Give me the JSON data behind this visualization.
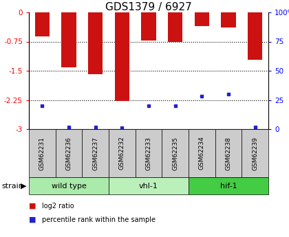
{
  "title": "GDS1379 / 6927",
  "samples": [
    "GSM62231",
    "GSM62236",
    "GSM62237",
    "GSM62232",
    "GSM62233",
    "GSM62235",
    "GSM62234",
    "GSM62238",
    "GSM62239"
  ],
  "log2_ratios": [
    -0.62,
    -1.42,
    -1.58,
    -2.28,
    -0.72,
    -0.75,
    -0.35,
    -0.38,
    -1.22
  ],
  "percentile_ranks": [
    20,
    2,
    2,
    1,
    20,
    20,
    28,
    30,
    2
  ],
  "groups": [
    {
      "label": "wild type",
      "indices": [
        0,
        1,
        2
      ],
      "color": "#aaeaaa"
    },
    {
      "label": "vhl-1",
      "indices": [
        3,
        4,
        5
      ],
      "color": "#bbf0bb"
    },
    {
      "label": "hif-1",
      "indices": [
        6,
        7,
        8
      ],
      "color": "#44cc44"
    }
  ],
  "ylim_left": [
    -3,
    0
  ],
  "ylim_right": [
    0,
    100
  ],
  "yticks_left": [
    0,
    -0.75,
    -1.5,
    -2.25,
    -3
  ],
  "yticks_right": [
    0,
    25,
    50,
    75,
    100
  ],
  "bar_color": "#cc1111",
  "dot_color": "#2222cc",
  "bar_width": 0.55,
  "background_label": "#cccccc",
  "strain_label": "strain",
  "legend_log2": "log2 ratio",
  "legend_pct": "percentile rank within the sample",
  "title_fontsize": 11,
  "tick_fontsize": 7.5,
  "label_fontsize": 6.5,
  "group_fontsize": 8
}
